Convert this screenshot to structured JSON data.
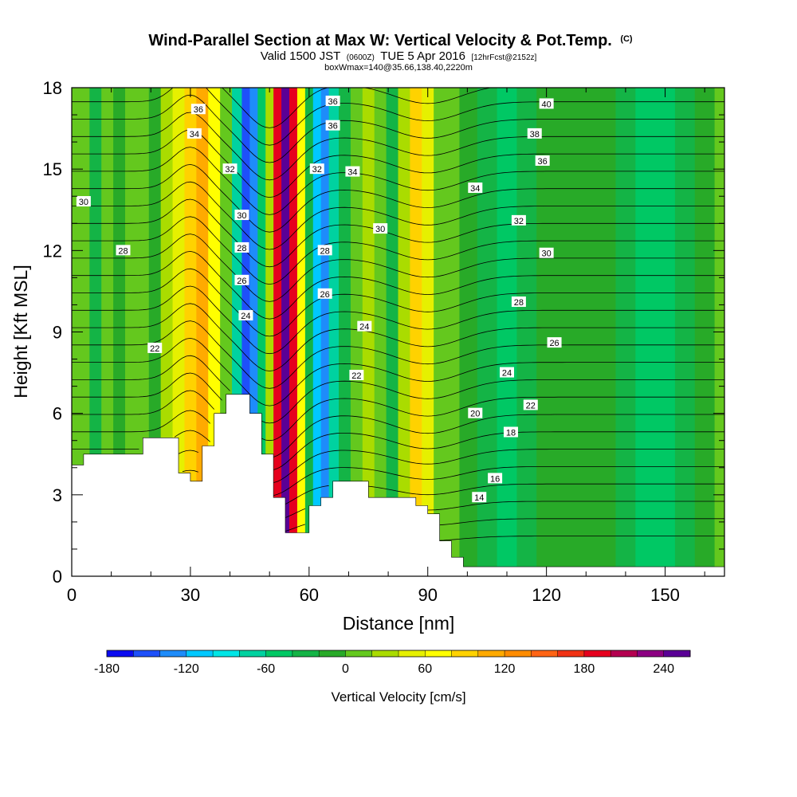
{
  "title": {
    "main": "Wind-Parallel Section at Max W: Vertical Velocity & Pot.Temp.",
    "copyright": "(C)",
    "valid_prefix": "Valid 1500 JST",
    "utc": "(0600Z)",
    "valid_date": "TUE 5 Apr 2016",
    "forecast": "[12hrFcst@2152z]",
    "box": "boxWmax=140@35.66,138.40,2220m"
  },
  "axes": {
    "xlabel": "Distance [nm]",
    "ylabel": "Height [Kft MSL]",
    "xlim": [
      0,
      165
    ],
    "ylim": [
      0,
      18
    ],
    "xticks": [
      "0",
      "30",
      "60",
      "90",
      "120",
      "150"
    ],
    "yticks": [
      "0",
      "3",
      "6",
      "9",
      "12",
      "15",
      "18"
    ]
  },
  "colorbar": {
    "label": "Vertical Velocity [cm/s]",
    "ticks": [
      "-180",
      "-120",
      "-60",
      "0",
      "60",
      "120",
      "180",
      "240"
    ],
    "levels": [
      -180,
      -160,
      -140,
      -120,
      -100,
      -80,
      -60,
      -40,
      -20,
      0,
      20,
      40,
      60,
      80,
      100,
      120,
      140,
      160,
      180,
      200,
      220,
      240
    ],
    "colors": [
      "#0a0af0",
      "#1e50fa",
      "#1e8cfa",
      "#00c8ff",
      "#00e6e6",
      "#00d2a0",
      "#00c864",
      "#14b446",
      "#28aa28",
      "#64c81e",
      "#aadc00",
      "#e6f000",
      "#ffff00",
      "#ffd200",
      "#ffaa00",
      "#ff8c00",
      "#ff6414",
      "#f03214",
      "#e6001e",
      "#b40050",
      "#8c0082",
      "#5a0096"
    ]
  },
  "chart_data": {
    "type": "heatmap",
    "title": "Wind-Parallel Section at Max W: Vertical Velocity & Pot.Temp.",
    "xlabel": "Distance [nm]",
    "ylabel": "Height [Kft MSL]",
    "xlim": [
      0,
      165
    ],
    "ylim": [
      0,
      18
    ],
    "colorbar_label": "Vertical Velocity [cm/s]",
    "colorbar_range": [
      -180,
      240
    ],
    "columns": [
      {
        "x": 0,
        "w": 10
      },
      {
        "x": 3,
        "w": 0
      },
      {
        "x": 6,
        "w": -30
      },
      {
        "x": 9,
        "w": 5
      },
      {
        "x": 12,
        "w": -20
      },
      {
        "x": 15,
        "w": 10
      },
      {
        "x": 18,
        "w": 0
      },
      {
        "x": 21,
        "w": -10
      },
      {
        "x": 24,
        "w": 20
      },
      {
        "x": 27,
        "w": 40
      },
      {
        "x": 30,
        "w": 80
      },
      {
        "x": 33,
        "w": 110
      },
      {
        "x": 36,
        "w": 70
      },
      {
        "x": 39,
        "w": 0
      },
      {
        "x": 42,
        "w": -70
      },
      {
        "x": 44,
        "w": -160
      },
      {
        "x": 46,
        "w": -130
      },
      {
        "x": 48,
        "w": -60
      },
      {
        "x": 50,
        "w": 30
      },
      {
        "x": 52,
        "w": 180
      },
      {
        "x": 54,
        "w": 240
      },
      {
        "x": 56,
        "w": 180
      },
      {
        "x": 58,
        "w": 60
      },
      {
        "x": 60,
        "w": -40
      },
      {
        "x": 62,
        "w": -120
      },
      {
        "x": 64,
        "w": -130
      },
      {
        "x": 66,
        "w": -80
      },
      {
        "x": 69,
        "w": -30
      },
      {
        "x": 72,
        "w": 0
      },
      {
        "x": 75,
        "w": 20
      },
      {
        "x": 78,
        "w": 0
      },
      {
        "x": 81,
        "w": -40
      },
      {
        "x": 84,
        "w": 20
      },
      {
        "x": 87,
        "w": 80
      },
      {
        "x": 90,
        "w": 40
      },
      {
        "x": 93,
        "w": 10
      },
      {
        "x": 96,
        "w": 0
      },
      {
        "x": 100,
        "w": -20
      },
      {
        "x": 105,
        "w": -40
      },
      {
        "x": 110,
        "w": -50
      },
      {
        "x": 115,
        "w": -40
      },
      {
        "x": 120,
        "w": -20
      },
      {
        "x": 125,
        "w": -20
      },
      {
        "x": 130,
        "w": -10
      },
      {
        "x": 135,
        "w": -20
      },
      {
        "x": 140,
        "w": -30
      },
      {
        "x": 145,
        "w": -50
      },
      {
        "x": 150,
        "w": -50
      },
      {
        "x": 155,
        "w": -40
      },
      {
        "x": 160,
        "w": -10
      },
      {
        "x": 165,
        "w": 0
      }
    ],
    "terrain": [
      [
        0,
        4.1
      ],
      [
        3,
        4.1
      ],
      [
        3,
        4.5
      ],
      [
        18,
        4.5
      ],
      [
        18,
        5.1
      ],
      [
        27,
        5.1
      ],
      [
        27,
        3.8
      ],
      [
        30,
        3.8
      ],
      [
        30,
        3.5
      ],
      [
        33,
        3.5
      ],
      [
        33,
        4.8
      ],
      [
        36,
        4.8
      ],
      [
        36,
        6.0
      ],
      [
        39,
        6.0
      ],
      [
        39,
        6.7
      ],
      [
        45,
        6.7
      ],
      [
        45,
        6.0
      ],
      [
        48,
        6.0
      ],
      [
        48,
        4.5
      ],
      [
        51,
        4.5
      ],
      [
        51,
        2.9
      ],
      [
        54,
        2.9
      ],
      [
        54,
        1.6
      ],
      [
        60,
        1.6
      ],
      [
        60,
        2.6
      ],
      [
        63,
        2.6
      ],
      [
        63,
        2.9
      ],
      [
        66,
        2.9
      ],
      [
        66,
        3.5
      ],
      [
        75,
        3.5
      ],
      [
        75,
        2.9
      ],
      [
        87,
        2.9
      ],
      [
        87,
        2.6
      ],
      [
        90,
        2.6
      ],
      [
        90,
        2.3
      ],
      [
        93,
        2.3
      ],
      [
        93,
        1.3
      ],
      [
        96,
        1.3
      ],
      [
        96,
        0.7
      ],
      [
        99,
        0.7
      ],
      [
        99,
        0.35
      ],
      [
        165,
        0.35
      ]
    ],
    "theta_labels": [
      {
        "text": "40",
        "x": 120,
        "y": 17.4
      },
      {
        "text": "38",
        "x": 117,
        "y": 16.3
      },
      {
        "text": "36",
        "x": 119,
        "y": 15.3
      },
      {
        "text": "34",
        "x": 102,
        "y": 14.3
      },
      {
        "text": "32",
        "x": 113,
        "y": 13.1
      },
      {
        "text": "30",
        "x": 120,
        "y": 11.9
      },
      {
        "text": "28",
        "x": 113,
        "y": 10.1
      },
      {
        "text": "26",
        "x": 122,
        "y": 8.6
      },
      {
        "text": "24",
        "x": 110,
        "y": 7.5
      },
      {
        "text": "22",
        "x": 116,
        "y": 6.3
      },
      {
        "text": "20",
        "x": 102,
        "y": 6.0
      },
      {
        "text": "18",
        "x": 111,
        "y": 5.3
      },
      {
        "text": "16",
        "x": 107,
        "y": 3.6
      },
      {
        "text": "14",
        "x": 103,
        "y": 2.9
      },
      {
        "text": "30",
        "x": 3,
        "y": 13.8
      },
      {
        "text": "28",
        "x": 13,
        "y": 12.0
      },
      {
        "text": "22",
        "x": 21,
        "y": 8.4
      },
      {
        "text": "36",
        "x": 32,
        "y": 17.2
      },
      {
        "text": "34",
        "x": 31,
        "y": 16.3
      },
      {
        "text": "32",
        "x": 40,
        "y": 15.0
      },
      {
        "text": "30",
        "x": 43,
        "y": 13.3
      },
      {
        "text": "28",
        "x": 43,
        "y": 12.1
      },
      {
        "text": "26",
        "x": 43,
        "y": 10.9
      },
      {
        "text": "24",
        "x": 44,
        "y": 9.6
      },
      {
        "text": "36",
        "x": 66,
        "y": 17.5
      },
      {
        "text": "36",
        "x": 66,
        "y": 16.6
      },
      {
        "text": "32",
        "x": 62,
        "y": 15.0
      },
      {
        "text": "34",
        "x": 71,
        "y": 14.9
      },
      {
        "text": "30",
        "x": 78,
        "y": 12.8
      },
      {
        "text": "28",
        "x": 64,
        "y": 12.0
      },
      {
        "text": "26",
        "x": 64,
        "y": 10.4
      },
      {
        "text": "24",
        "x": 74,
        "y": 9.2
      },
      {
        "text": "22",
        "x": 72,
        "y": 7.4
      }
    ]
  }
}
